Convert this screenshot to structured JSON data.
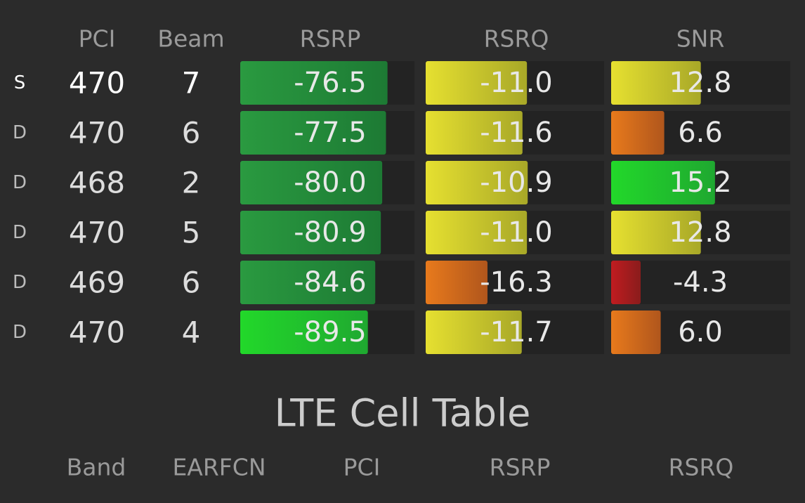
{
  "nr_table": {
    "columns": [
      "PCI",
      "Beam",
      "RSRP",
      "RSRQ",
      "SNR"
    ],
    "rows": [
      {
        "type": "S",
        "pci": 470,
        "beam": 7,
        "rsrp": -76.5,
        "rsrq": -11.0,
        "snr": 12.8,
        "labels": [
          "-76.5",
          "-11.0",
          "12.8"
        ]
      },
      {
        "type": "D",
        "pci": 470,
        "beam": 6,
        "rsrp": -77.5,
        "rsrq": -11.6,
        "snr": 6.6,
        "labels": [
          "-77.5",
          "-11.6",
          "6.6"
        ]
      },
      {
        "type": "D",
        "pci": 468,
        "beam": 2,
        "rsrp": -80.0,
        "rsrq": -10.9,
        "snr": 15.2,
        "labels": [
          "-80.0",
          "-10.9",
          "15.2"
        ]
      },
      {
        "type": "D",
        "pci": 470,
        "beam": 5,
        "rsrp": -80.9,
        "rsrq": -11.0,
        "snr": 12.8,
        "labels": [
          "-80.9",
          "-11.0",
          "12.8"
        ]
      },
      {
        "type": "D",
        "pci": 469,
        "beam": 6,
        "rsrp": -84.6,
        "rsrq": -16.3,
        "snr": -4.3,
        "labels": [
          "-84.6",
          "-16.3",
          "-4.3"
        ]
      },
      {
        "type": "D",
        "pci": 470,
        "beam": 4,
        "rsrp": -89.5,
        "rsrq": -11.7,
        "snr": 6.0,
        "labels": [
          "-89.5",
          "-11.7",
          "6.0"
        ]
      }
    ]
  },
  "lte_table": {
    "title": "LTE Cell Table",
    "columns": [
      "Band",
      "EARFCN",
      "PCI",
      "RSRP",
      "RSRQ"
    ]
  }
}
